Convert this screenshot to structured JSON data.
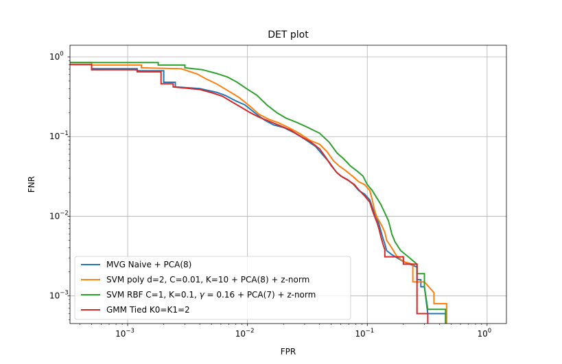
{
  "chart_data": {
    "type": "line",
    "title": "DET plot",
    "xlabel": "FPR",
    "ylabel": "FNR",
    "xscale": "log",
    "yscale": "log",
    "xlim": [
      0.00033,
      1.45
    ],
    "ylim": [
      0.00045,
      1.4
    ],
    "grid": true,
    "legend_position": "lower-left",
    "x_ticks": [
      {
        "value": 0.001,
        "label": "10",
        "exp": "−3"
      },
      {
        "value": 0.01,
        "label": "10",
        "exp": "−2"
      },
      {
        "value": 0.1,
        "label": "10",
        "exp": "−1"
      },
      {
        "value": 1,
        "label": "10",
        "exp": "0"
      }
    ],
    "y_ticks": [
      {
        "value": 0.001,
        "label": "10",
        "exp": "−3"
      },
      {
        "value": 0.01,
        "label": "10",
        "exp": "−2"
      },
      {
        "value": 0.1,
        "label": "10",
        "exp": "−1"
      },
      {
        "value": 1,
        "label": "10",
        "exp": "0"
      }
    ],
    "series": [
      {
        "name": "MVG Naive + PCA(8)",
        "color": "#1f77b4",
        "points": [
          [
            0.00033,
            0.85
          ],
          [
            0.0005,
            0.85
          ],
          [
            0.0005,
            0.71
          ],
          [
            0.0012,
            0.71
          ],
          [
            0.0012,
            0.67
          ],
          [
            0.002,
            0.67
          ],
          [
            0.002,
            0.48
          ],
          [
            0.0025,
            0.48
          ],
          [
            0.0025,
            0.42
          ],
          [
            0.004,
            0.4
          ],
          [
            0.0055,
            0.36
          ],
          [
            0.0065,
            0.33
          ],
          [
            0.008,
            0.28
          ],
          [
            0.0095,
            0.25
          ],
          [
            0.011,
            0.21
          ],
          [
            0.0125,
            0.18
          ],
          [
            0.014,
            0.16
          ],
          [
            0.0165,
            0.14
          ],
          [
            0.02,
            0.13
          ],
          [
            0.025,
            0.11
          ],
          [
            0.03,
            0.093
          ],
          [
            0.037,
            0.075
          ],
          [
            0.042,
            0.06
          ],
          [
            0.048,
            0.048
          ],
          [
            0.055,
            0.036
          ],
          [
            0.06,
            0.032
          ],
          [
            0.068,
            0.029
          ],
          [
            0.077,
            0.025
          ],
          [
            0.085,
            0.021
          ],
          [
            0.095,
            0.019
          ],
          [
            0.105,
            0.016
          ],
          [
            0.11,
            0.013
          ],
          [
            0.115,
            0.011
          ],
          [
            0.12,
            0.0095
          ],
          [
            0.125,
            0.008
          ],
          [
            0.13,
            0.0065
          ],
          [
            0.135,
            0.0053
          ],
          [
            0.14,
            0.0045
          ],
          [
            0.145,
            0.0037
          ],
          [
            0.16,
            0.0033
          ],
          [
            0.2,
            0.0027
          ],
          [
            0.26,
            0.0023
          ],
          [
            0.26,
            0.0016
          ],
          [
            0.28,
            0.0016
          ],
          [
            0.28,
            0.0013
          ],
          [
            0.3,
            0.0013
          ],
          [
            0.32,
            0.0006
          ],
          [
            0.45,
            0.0006
          ],
          [
            0.45,
            0.00045
          ]
        ]
      },
      {
        "name": "SVM poly d=2, C=0.01, K=10 + PCA(8) + z-norm",
        "color": "#ff7f0e",
        "points": [
          [
            0.00033,
            0.85
          ],
          [
            0.0005,
            0.85
          ],
          [
            0.0005,
            0.79
          ],
          [
            0.0013,
            0.79
          ],
          [
            0.0013,
            0.73
          ],
          [
            0.0028,
            0.71
          ],
          [
            0.0038,
            0.61
          ],
          [
            0.0045,
            0.53
          ],
          [
            0.0055,
            0.46
          ],
          [
            0.0068,
            0.38
          ],
          [
            0.0085,
            0.31
          ],
          [
            0.0105,
            0.24
          ],
          [
            0.0125,
            0.19
          ],
          [
            0.015,
            0.165
          ],
          [
            0.018,
            0.15
          ],
          [
            0.022,
            0.13
          ],
          [
            0.027,
            0.11
          ],
          [
            0.033,
            0.09
          ],
          [
            0.04,
            0.08
          ],
          [
            0.046,
            0.065
          ],
          [
            0.052,
            0.05
          ],
          [
            0.058,
            0.043
          ],
          [
            0.065,
            0.038
          ],
          [
            0.075,
            0.032
          ],
          [
            0.085,
            0.027
          ],
          [
            0.095,
            0.025
          ],
          [
            0.105,
            0.021
          ],
          [
            0.11,
            0.016
          ],
          [
            0.115,
            0.012
          ],
          [
            0.12,
            0.0098
          ],
          [
            0.13,
            0.008
          ],
          [
            0.14,
            0.0063
          ],
          [
            0.145,
            0.005
          ],
          [
            0.16,
            0.004
          ],
          [
            0.175,
            0.0032
          ],
          [
            0.2,
            0.0027
          ],
          [
            0.24,
            0.0025
          ],
          [
            0.24,
            0.0015
          ],
          [
            0.3,
            0.0015
          ],
          [
            0.36,
            0.0011
          ],
          [
            0.36,
            0.0008
          ],
          [
            0.46,
            0.0008
          ],
          [
            0.46,
            0.00045
          ]
        ]
      },
      {
        "name": "SVM RBF C=1, K=0.1, $\\gamma = 0.16$ + PCA(7) + z-norm",
        "label_parts": [
          "SVM RBF C=1, K=0.1, ",
          "γ",
          " = 0.16 + PCA(7) + z-norm"
        ],
        "color": "#2ca02c",
        "points": [
          [
            0.00033,
            0.85
          ],
          [
            0.0018,
            0.85
          ],
          [
            0.0018,
            0.79
          ],
          [
            0.003,
            0.79
          ],
          [
            0.003,
            0.73
          ],
          [
            0.0042,
            0.69
          ],
          [
            0.0055,
            0.62
          ],
          [
            0.0068,
            0.56
          ],
          [
            0.0082,
            0.48
          ],
          [
            0.0098,
            0.4
          ],
          [
            0.012,
            0.33
          ],
          [
            0.0145,
            0.25
          ],
          [
            0.0175,
            0.2
          ],
          [
            0.021,
            0.17
          ],
          [
            0.026,
            0.15
          ],
          [
            0.032,
            0.13
          ],
          [
            0.04,
            0.11
          ],
          [
            0.048,
            0.085
          ],
          [
            0.056,
            0.062
          ],
          [
            0.064,
            0.052
          ],
          [
            0.072,
            0.043
          ],
          [
            0.082,
            0.037
          ],
          [
            0.092,
            0.032
          ],
          [
            0.1,
            0.025
          ],
          [
            0.11,
            0.021
          ],
          [
            0.12,
            0.017
          ],
          [
            0.13,
            0.014
          ],
          [
            0.14,
            0.011
          ],
          [
            0.15,
            0.0088
          ],
          [
            0.155,
            0.0073
          ],
          [
            0.16,
            0.006
          ],
          [
            0.17,
            0.0048
          ],
          [
            0.19,
            0.0037
          ],
          [
            0.22,
            0.0031
          ],
          [
            0.26,
            0.0025
          ],
          [
            0.26,
            0.0019
          ],
          [
            0.3,
            0.0019
          ],
          [
            0.3,
            0.0013
          ],
          [
            0.32,
            0.00068
          ],
          [
            0.45,
            0.00068
          ],
          [
            0.45,
            0.00045
          ]
        ]
      },
      {
        "name": "GMM Tied K0=K1=2",
        "color": "#d62728",
        "points": [
          [
            0.00033,
            0.8
          ],
          [
            0.0005,
            0.8
          ],
          [
            0.0005,
            0.69
          ],
          [
            0.0012,
            0.69
          ],
          [
            0.0012,
            0.65
          ],
          [
            0.0019,
            0.65
          ],
          [
            0.0019,
            0.46
          ],
          [
            0.0024,
            0.46
          ],
          [
            0.0024,
            0.42
          ],
          [
            0.004,
            0.39
          ],
          [
            0.0052,
            0.35
          ],
          [
            0.0062,
            0.32
          ],
          [
            0.0075,
            0.27
          ],
          [
            0.009,
            0.23
          ],
          [
            0.0105,
            0.2
          ],
          [
            0.0125,
            0.175
          ],
          [
            0.0145,
            0.16
          ],
          [
            0.018,
            0.14
          ],
          [
            0.023,
            0.12
          ],
          [
            0.028,
            0.1
          ],
          [
            0.034,
            0.085
          ],
          [
            0.04,
            0.07
          ],
          [
            0.045,
            0.055
          ],
          [
            0.05,
            0.043
          ],
          [
            0.056,
            0.035
          ],
          [
            0.062,
            0.031
          ],
          [
            0.07,
            0.028
          ],
          [
            0.078,
            0.025
          ],
          [
            0.086,
            0.021
          ],
          [
            0.095,
            0.018
          ],
          [
            0.105,
            0.015
          ],
          [
            0.11,
            0.012
          ],
          [
            0.115,
            0.01
          ],
          [
            0.12,
            0.0085
          ],
          [
            0.125,
            0.007
          ],
          [
            0.13,
            0.0055
          ],
          [
            0.135,
            0.0045
          ],
          [
            0.14,
            0.0038
          ],
          [
            0.14,
            0.0031
          ],
          [
            0.2,
            0.0031
          ],
          [
            0.2,
            0.0025
          ],
          [
            0.26,
            0.0025
          ],
          [
            0.26,
            0.0016
          ],
          [
            0.26,
            0.0006
          ],
          [
            0.32,
            0.0006
          ],
          [
            0.32,
            0.00045
          ]
        ]
      }
    ]
  }
}
